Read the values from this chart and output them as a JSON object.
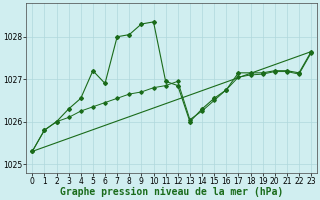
{
  "title": "Graphe pression niveau de la mer (hPa)",
  "bg_color": "#d0eef0",
  "line_color": "#1a6b1a",
  "marker_color": "#1a6b1a",
  "grid_color": "#b0d8dc",
  "ylim": [
    1024.8,
    1028.8
  ],
  "xlim": [
    -0.5,
    23.5
  ],
  "yticks": [
    1025,
    1026,
    1027,
    1028
  ],
  "xticks": [
    0,
    1,
    2,
    3,
    4,
    5,
    6,
    7,
    8,
    9,
    10,
    11,
    12,
    13,
    14,
    15,
    16,
    17,
    18,
    19,
    20,
    21,
    22,
    23
  ],
  "series1_x": [
    0,
    1,
    2,
    3,
    4,
    5,
    6,
    7,
    8,
    9,
    10,
    11,
    12,
    13,
    14,
    15,
    16,
    17,
    18,
    19,
    20,
    21,
    22,
    23
  ],
  "series1_y": [
    1025.3,
    1025.8,
    1026.0,
    1026.3,
    1026.55,
    1027.2,
    1026.9,
    1028.0,
    1028.05,
    1028.3,
    1028.35,
    1026.95,
    1026.85,
    1026.0,
    1026.3,
    1026.55,
    1026.75,
    1027.15,
    1027.15,
    1027.15,
    1027.2,
    1027.2,
    1027.15,
    1027.65
  ],
  "series2_x": [
    0,
    1,
    2,
    3,
    4,
    5,
    6,
    7,
    8,
    9,
    10,
    11,
    12,
    13,
    14,
    15,
    16,
    17,
    18,
    19,
    20,
    21,
    22,
    23
  ],
  "series2_y": [
    1025.3,
    1025.8,
    1026.0,
    1026.1,
    1026.25,
    1026.35,
    1026.45,
    1026.55,
    1026.65,
    1026.7,
    1026.8,
    1026.85,
    1026.95,
    1026.05,
    1026.25,
    1026.5,
    1026.75,
    1027.05,
    1027.1,
    1027.12,
    1027.18,
    1027.18,
    1027.12,
    1027.62
  ],
  "series3_x": [
    0,
    23
  ],
  "series3_y": [
    1025.3,
    1027.65
  ],
  "tick_fontsize": 5.5,
  "xlabel_fontsize": 7
}
